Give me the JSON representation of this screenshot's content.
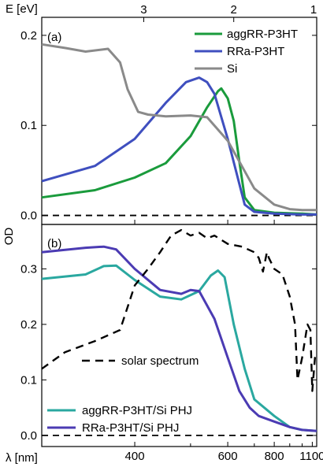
{
  "chart_data": [
    {
      "type": "line",
      "panel_label": "(a)",
      "ylim": [
        -0.01,
        0.22
      ],
      "yticks": [
        0.0,
        0.1,
        0.2
      ],
      "ytick_labels": [
        "0.0",
        "0.1",
        "0.2"
      ],
      "grid": false,
      "legend_position": "top-right",
      "series": [
        {
          "name": "aggRR-P3HT",
          "color": "#1a9b3c",
          "x": [
            300,
            350,
            400,
            450,
            500,
            540,
            570,
            580,
            600,
            620,
            640,
            660,
            700,
            800,
            1000,
            1150
          ],
          "y": [
            0.02,
            0.028,
            0.042,
            0.058,
            0.088,
            0.12,
            0.138,
            0.141,
            0.13,
            0.105,
            0.06,
            0.02,
            0.006,
            0.003,
            0.002,
            0.001
          ]
        },
        {
          "name": "RRa-P3HT",
          "color": "#3f4fbf",
          "x": [
            300,
            350,
            400,
            450,
            490,
            520,
            540,
            560,
            600,
            640,
            660,
            700,
            800,
            1000,
            1150
          ],
          "y": [
            0.038,
            0.055,
            0.085,
            0.125,
            0.148,
            0.153,
            0.148,
            0.135,
            0.085,
            0.035,
            0.012,
            0.004,
            0.002,
            0.001,
            0.001
          ]
        },
        {
          "name": "Si",
          "color": "#8a8a8a",
          "x": [
            300,
            320,
            340,
            365,
            380,
            390,
            405,
            420,
            450,
            500,
            540,
            600,
            700,
            800,
            900,
            1000,
            1150
          ],
          "y": [
            0.19,
            0.186,
            0.182,
            0.185,
            0.17,
            0.14,
            0.115,
            0.112,
            0.11,
            0.111,
            0.109,
            0.083,
            0.03,
            0.012,
            0.007,
            0.006,
            0.006
          ]
        }
      ]
    },
    {
      "type": "line",
      "panel_label": "(b)",
      "ylim": [
        -0.02,
        0.38
      ],
      "yticks": [
        0.0,
        0.1,
        0.2,
        0.3
      ],
      "ytick_labels": [
        "0.0",
        "0.1",
        "0.2",
        "0.3"
      ],
      "xlabel": "λ [nm]",
      "xticks": [
        400,
        600,
        800,
        1100
      ],
      "xtick_labels": [
        "400",
        "600",
        "800",
        "1100"
      ],
      "secondary_xlabel": "E [eV]",
      "secondary_xticks": [
        1,
        2,
        3
      ],
      "secondary_xtick_labels": [
        "1",
        "2",
        "3"
      ],
      "ylabel": "OD",
      "grid": false,
      "legend_position": "bottom-left",
      "series": [
        {
          "name": "aggRR-P3HT/Si PHJ",
          "color": "#2aa8a0",
          "x": [
            300,
            340,
            360,
            375,
            400,
            440,
            480,
            520,
            550,
            570,
            590,
            620,
            660,
            700,
            800,
            900,
            1000,
            1150
          ],
          "y": [
            0.282,
            0.29,
            0.305,
            0.306,
            0.28,
            0.25,
            0.245,
            0.26,
            0.288,
            0.297,
            0.285,
            0.2,
            0.12,
            0.065,
            0.035,
            0.015,
            0.01,
            0.008
          ]
        },
        {
          "name": "RRa-P3HT/Si PHJ",
          "color": "#4b3bb3",
          "x": [
            300,
            340,
            360,
            375,
            400,
            440,
            480,
            500,
            520,
            560,
            600,
            640,
            680,
            720,
            800,
            900,
            1000,
            1150
          ],
          "y": [
            0.33,
            0.338,
            0.34,
            0.335,
            0.3,
            0.262,
            0.255,
            0.262,
            0.26,
            0.21,
            0.14,
            0.08,
            0.05,
            0.035,
            0.025,
            0.015,
            0.01,
            0.008
          ]
        },
        {
          "name": "solar spectrum",
          "color": "#000000",
          "dash": "dashed",
          "x": [
            300,
            320,
            350,
            380,
            400,
            420,
            440,
            460,
            480,
            500,
            520,
            540,
            560,
            600,
            650,
            700,
            720,
            740,
            760,
            770,
            800,
            850,
            900,
            940,
            960,
            1000,
            1050,
            1080,
            1100,
            1130,
            1150
          ],
          "y": [
            0.12,
            0.15,
            0.17,
            0.19,
            0.27,
            0.3,
            0.33,
            0.36,
            0.37,
            0.36,
            0.365,
            0.355,
            0.36,
            0.345,
            0.34,
            0.33,
            0.32,
            0.295,
            0.33,
            0.32,
            0.3,
            0.29,
            0.25,
            0.2,
            0.1,
            0.14,
            0.2,
            0.19,
            0.08,
            0.14,
            0.15
          ]
        }
      ]
    }
  ]
}
